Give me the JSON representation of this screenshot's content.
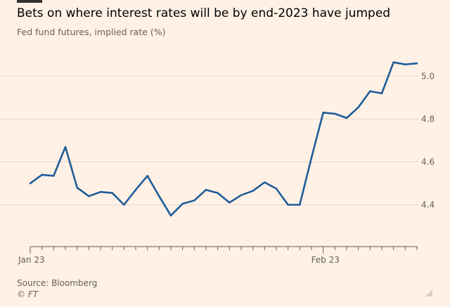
{
  "chart_data": {
    "type": "line",
    "title": "Bets on where interest rates will be by end-2023 have jumped",
    "subtitle": "Fed fund futures, implied rate (%)",
    "xlabel": "",
    "ylabel": "",
    "x_tick_labels": [
      "Jan 23",
      "Feb 23"
    ],
    "x_tick_label_indices": [
      0,
      25
    ],
    "y_ticks": [
      "4.4",
      "4.6",
      "4.8",
      "5.0"
    ],
    "ylim": [
      4.2,
      5.1
    ],
    "grid": true,
    "legend": "none",
    "series": [
      {
        "name": "Implied rate",
        "color": "#1F5C99",
        "values": [
          4.5,
          4.54,
          4.535,
          4.67,
          4.48,
          4.44,
          4.46,
          4.455,
          4.4,
          4.47,
          4.535,
          4.44,
          4.35,
          4.405,
          4.42,
          4.47,
          4.455,
          4.41,
          4.445,
          4.465,
          4.505,
          4.475,
          4.4,
          4.4,
          4.62,
          4.83,
          4.825,
          4.805,
          4.855,
          4.93,
          4.92,
          5.065,
          5.055,
          5.06
        ]
      }
    ]
  },
  "source_text": "Source: Bloomberg",
  "credit_text": "© FT",
  "colors": {
    "background": "#FFF1E5",
    "gridline": "#E6D9CE",
    "axis": "#66605C",
    "line": "#1F5C99"
  }
}
